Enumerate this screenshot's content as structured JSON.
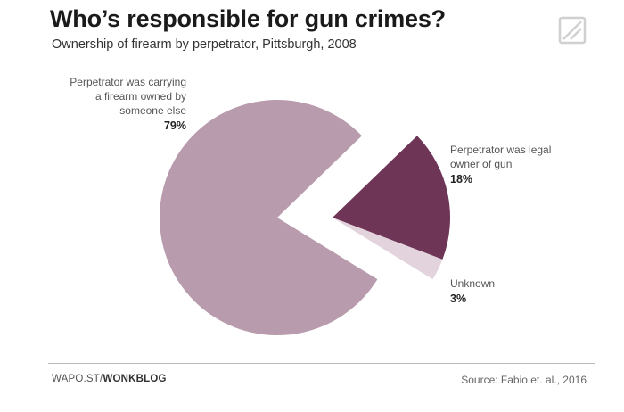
{
  "header": {
    "title": "Who’s responsible for gun crimes?",
    "subtitle": "Ownership of firearm by perpetrator, Pittsburgh, 2008"
  },
  "chart_data": {
    "type": "pie",
    "slices": [
      {
        "label": "Perpetrator was carrying a firearm owned by someone else",
        "value": 79,
        "pct_label": "79%",
        "color": "#b89bac",
        "exploded": false
      },
      {
        "label": "Perpetrator was legal owner of gun",
        "value": 18,
        "pct_label": "18%",
        "color": "#6e3556",
        "exploded": true
      },
      {
        "label": "Unknown",
        "value": 3,
        "pct_label": "3%",
        "color": "#e2d3dc",
        "exploded": true
      }
    ],
    "title": "Who’s responsible for gun crimes?",
    "subtitle": "Ownership of firearm by perpetrator, Pittsburgh, 2008",
    "legend": "none"
  },
  "labels": {
    "big_line1": "Perpetrator was carrying",
    "big_line2": "a firearm owned by",
    "big_line3": "someone else",
    "legal_line1": "Perpetrator was legal",
    "legal_line2": "owner of gun",
    "unknown_line1": "Unknown"
  },
  "footer": {
    "brand_prefix": "WAPO.ST/",
    "brand_bold": "WONKBLOG",
    "source": "Source: Fabio et. al., 2016"
  },
  "colors": {
    "background": "#ffffff",
    "title": "#1a1a1a",
    "logo": "#d0d0d0"
  },
  "icons": {
    "logo": "washington-post-logo-icon"
  }
}
